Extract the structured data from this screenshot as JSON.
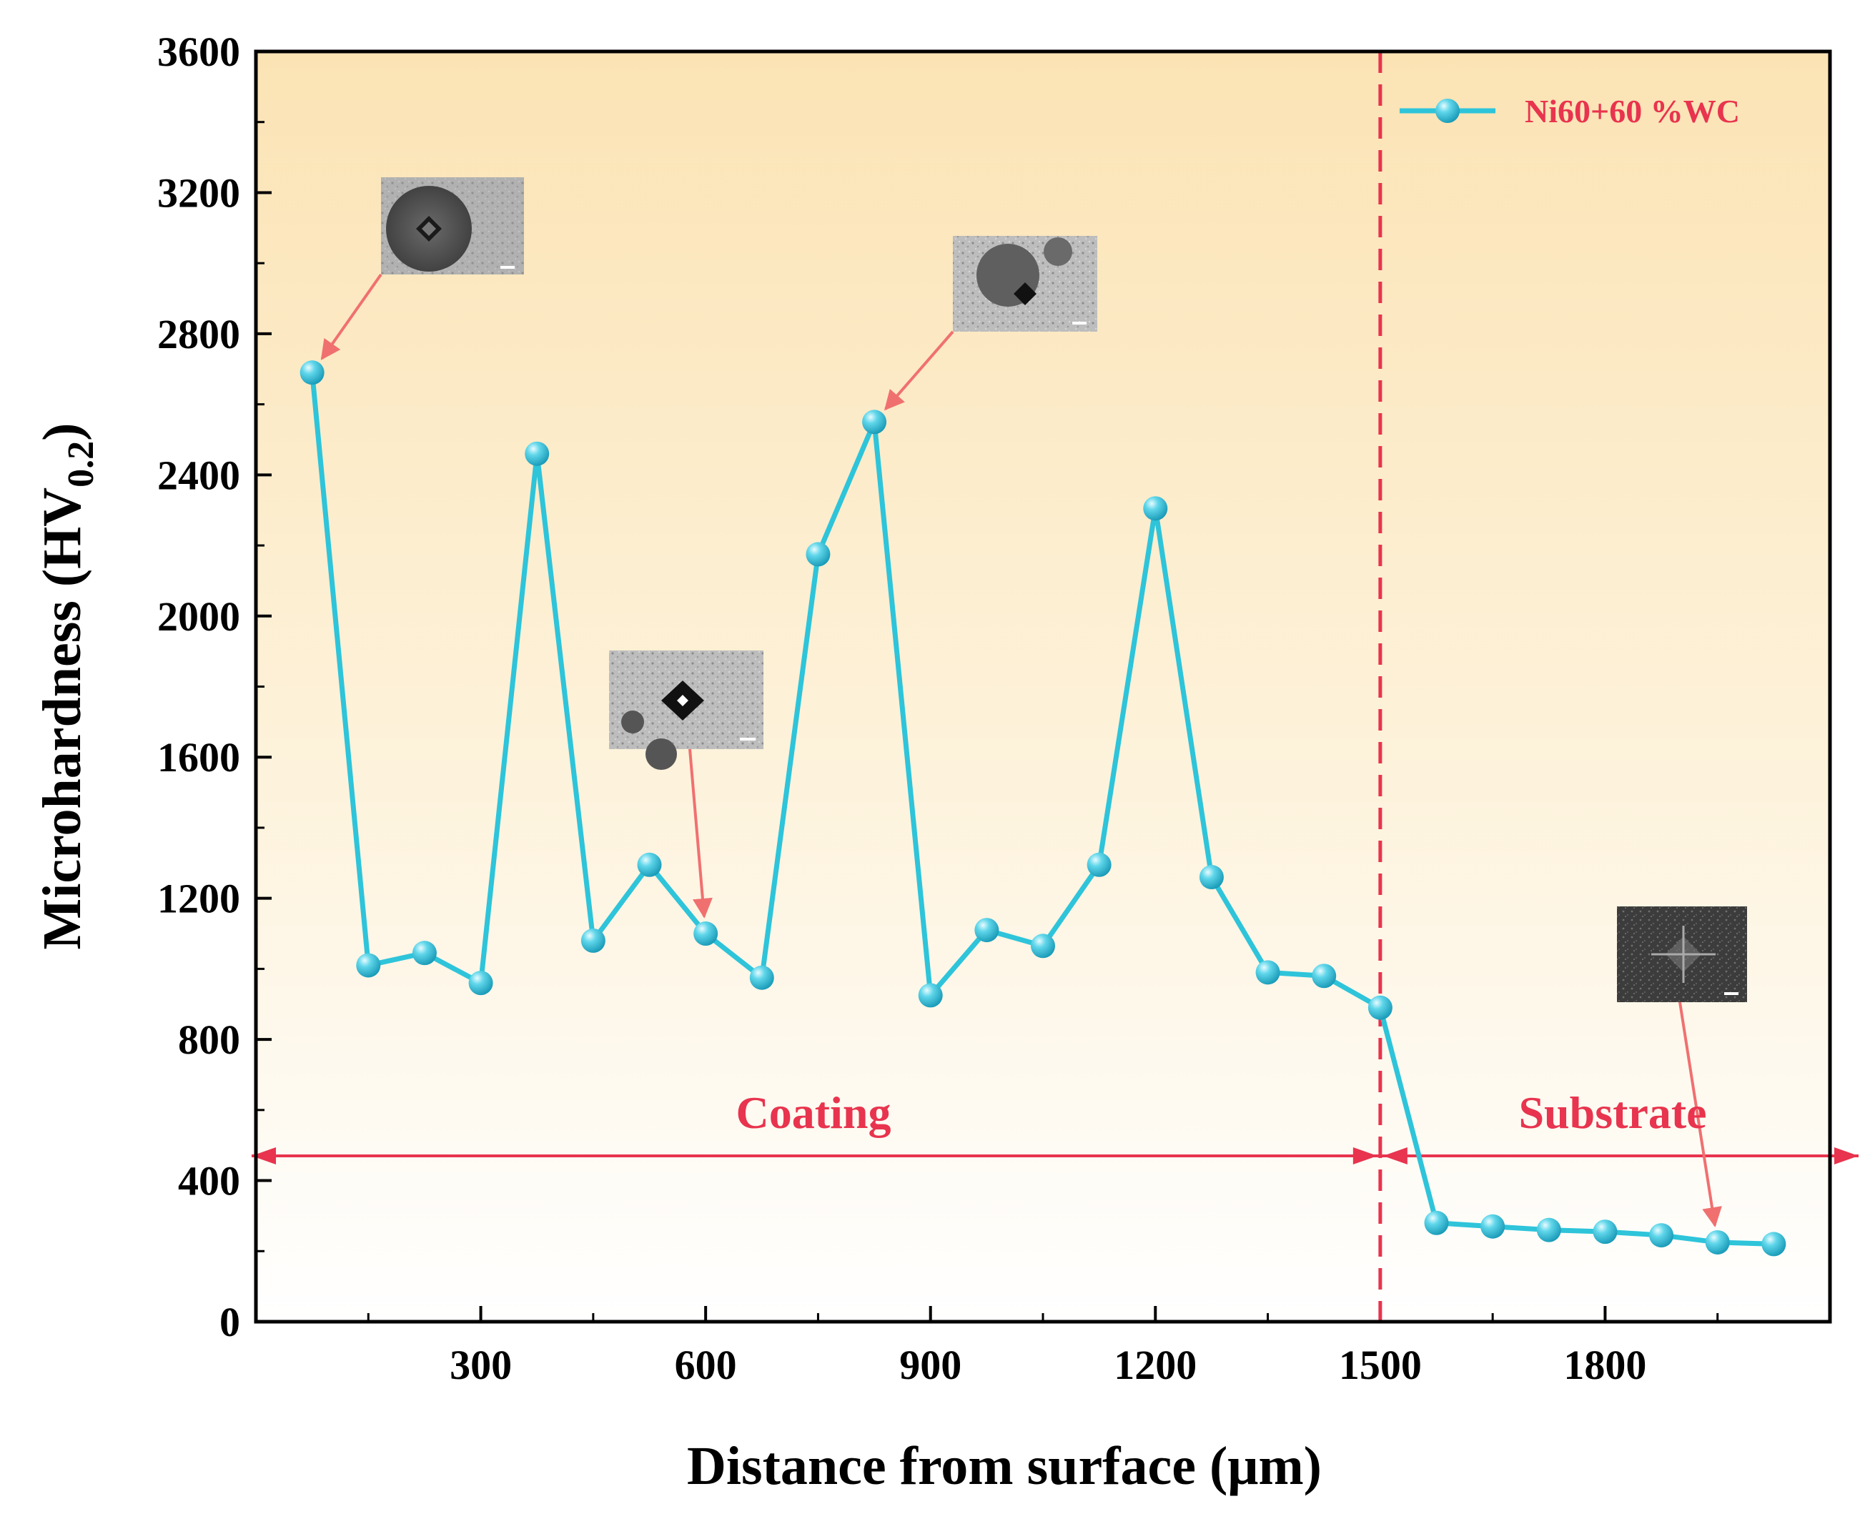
{
  "chart_data": {
    "type": "line",
    "title": "",
    "xlabel": "Distance from surface (μm)",
    "ylabel_main": "Microhardness (HV",
    "ylabel_sub": "0.2",
    "ylabel_close": ")",
    "xlim": [
      0,
      2100
    ],
    "ylim": [
      0,
      3600
    ],
    "xticks_labeled": [
      300,
      600,
      900,
      1200,
      1500,
      1800
    ],
    "yticks": [
      0,
      400,
      800,
      1200,
      1600,
      2000,
      2400,
      2800,
      3200,
      3600
    ],
    "series": [
      {
        "name": "Ni60+60 %WC",
        "color": "#2EC4DA",
        "x": [
          75,
          150,
          225,
          300,
          375,
          450,
          525,
          600,
          675,
          750,
          825,
          900,
          975,
          1050,
          1125,
          1200,
          1275,
          1350,
          1425,
          1500,
          1575,
          1650,
          1725,
          1800,
          1875,
          1950,
          2025
        ],
        "y": [
          2690,
          1010,
          1045,
          960,
          2460,
          1080,
          1295,
          1100,
          975,
          2175,
          2550,
          925,
          1110,
          1065,
          1295,
          2305,
          1260,
          990,
          980,
          890,
          280,
          270,
          260,
          255,
          245,
          225,
          220
        ]
      }
    ],
    "boundary_x": 1500,
    "regions": {
      "coating": "Coating",
      "substrate": "Substrate",
      "arrow_y": 470
    },
    "annotations": [
      {
        "name": "inset-1",
        "target_index": 0
      },
      {
        "name": "inset-2",
        "target_index": 7
      },
      {
        "name": "inset-3",
        "target_index": 10
      },
      {
        "name": "inset-4",
        "target_index": 25
      }
    ],
    "legend_position": "top-right",
    "colors": {
      "line": "#2EC4DA",
      "marker_fill": "#3FC8DF",
      "accent_red": "#E8344E",
      "arrow_red": "#F07070",
      "bg_top": "#FBE3B4",
      "bg_bottom": "#FFFFFF"
    }
  }
}
